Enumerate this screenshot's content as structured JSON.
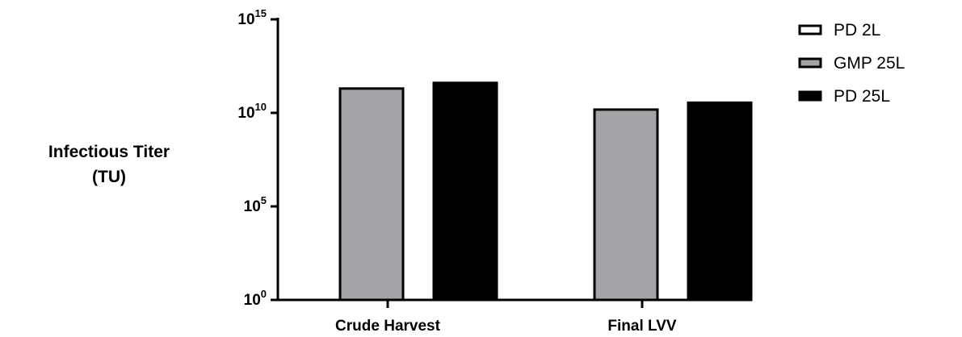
{
  "chart_data": {
    "type": "bar",
    "ylabel": [
      "Infectious Titer",
      "(TU)"
    ],
    "yscale": "log",
    "ylim": [
      1,
      1000000000000000.0
    ],
    "yticks": [
      {
        "value": 1,
        "base": "10",
        "exp": "0"
      },
      {
        "value": 100000,
        "base": "10",
        "exp": "5"
      },
      {
        "value": 10000000000,
        "base": "10",
        "exp": "10"
      },
      {
        "value": 1000000000000000,
        "base": "10",
        "exp": "15"
      }
    ],
    "categories": [
      "Crude Harvest",
      "Final LVV"
    ],
    "series": [
      {
        "name": "PD 2L",
        "color": "#ffffff",
        "values": [
          null,
          null
        ]
      },
      {
        "name": "GMP 25L",
        "color": "#a3a3a8",
        "values": [
          200000000000,
          15000000000
        ]
      },
      {
        "name": "PD 25L",
        "color": "#000000",
        "values": [
          400000000000,
          35000000000
        ]
      }
    ],
    "legend": {
      "position": "top-right"
    },
    "grid": false
  }
}
